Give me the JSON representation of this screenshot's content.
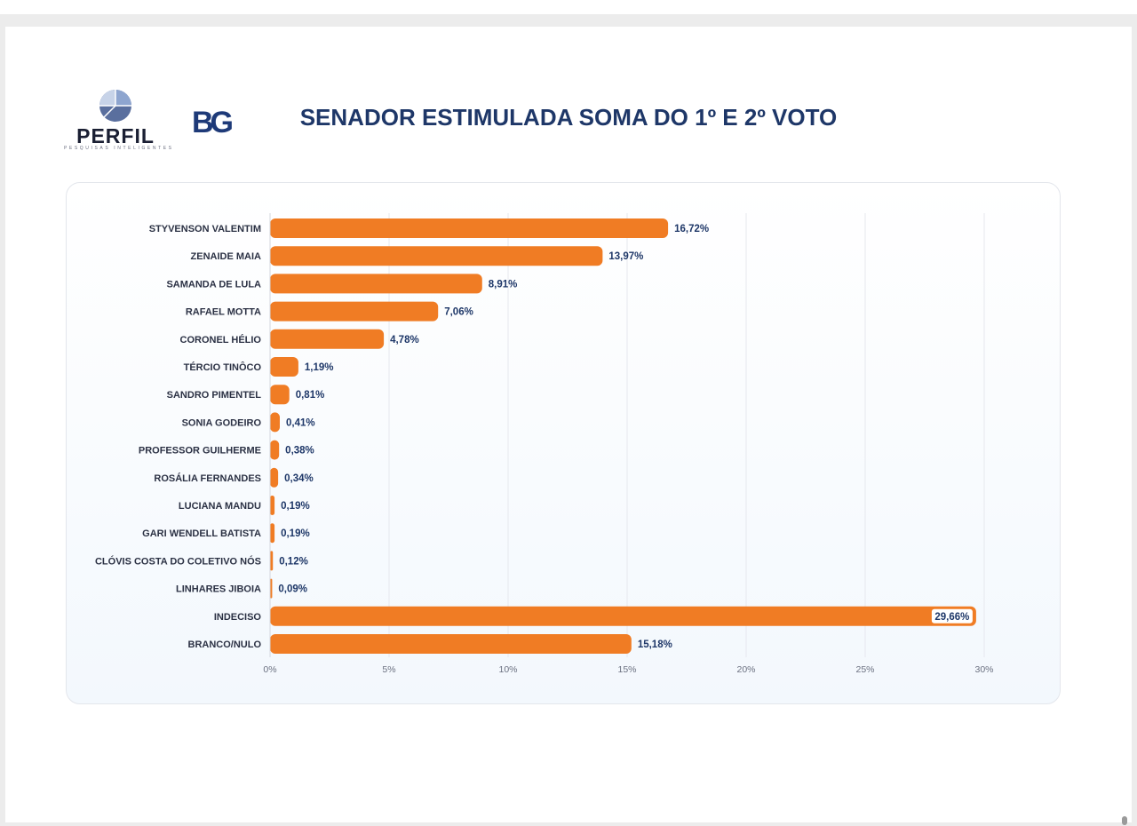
{
  "header": {
    "title": "SENADOR ESTIMULADA SOMA DO 1º E 2º VOTO",
    "logo_perfil": "PERFIL",
    "logo_perfil_sub": "PESQUISAS INTELIGENTES",
    "logo_bg": "BG"
  },
  "colors": {
    "bar": "#f07c24",
    "title": "#1e3768",
    "value_label": "#1e3768",
    "grid": "#e6e8ee"
  },
  "chart_data": {
    "type": "bar",
    "orientation": "horizontal",
    "title": "SENADOR ESTIMULADA SOMA DO 1º E 2º VOTO",
    "xlabel": "",
    "ylabel": "",
    "xlim": [
      0,
      30
    ],
    "x_ticks": [
      0,
      5,
      10,
      15,
      20,
      25,
      30
    ],
    "x_tick_labels": [
      "0%",
      "5%",
      "10%",
      "15%",
      "20%",
      "25%",
      "30%"
    ],
    "grid": "vertical",
    "categories": [
      "STYVENSON VALENTIM",
      "ZENAIDE MAIA",
      "SAMANDA DE LULA",
      "RAFAEL MOTTA",
      "CORONEL HÉLIO",
      "TÉRCIO TINÔCO",
      "SANDRO PIMENTEL",
      "SONIA GODEIRO",
      "PROFESSOR GUILHERME",
      "ROSÁLIA FERNANDES",
      "LUCIANA MANDU",
      "GARI WENDELL BATISTA",
      "CLÓVIS COSTA DO COLETIVO NÓS",
      "LINHARES JIBOIA",
      "INDECISO",
      "BRANCO/NULO"
    ],
    "values": [
      16.72,
      13.97,
      8.91,
      7.06,
      4.78,
      1.19,
      0.81,
      0.41,
      0.38,
      0.34,
      0.19,
      0.19,
      0.12,
      0.09,
      29.66,
      15.18
    ],
    "value_labels": [
      "16,72%",
      "13,97%",
      "8,91%",
      "7,06%",
      "4,78%",
      "1,19%",
      "0,81%",
      "0,41%",
      "0,38%",
      "0,34%",
      "0,19%",
      "0,19%",
      "0,12%",
      "0,09%",
      "29,66%",
      "15,18%"
    ]
  }
}
